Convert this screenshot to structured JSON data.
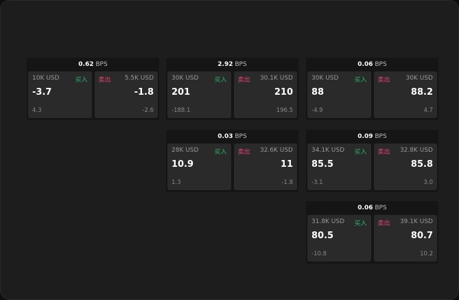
{
  "widgets": [
    {
      "bps": "0.62",
      "unit": "BPS",
      "buy_size": "10K USD",
      "buy_label": "买入",
      "buy_price": "-3.7",
      "buy_change": "4.3",
      "sell_label": "卖出",
      "sell_size": "5.5K USD",
      "sell_price": "-1.8",
      "sell_change": "-2.6"
    },
    {
      "bps": "2.92",
      "unit": "BPS",
      "buy_size": "30K USD",
      "buy_label": "买入",
      "buy_price": "201",
      "buy_change": "-188.1",
      "sell_label": "卖出",
      "sell_size": "30.1K USD",
      "sell_price": "210",
      "sell_change": "196.5"
    },
    {
      "bps": "0.06",
      "unit": "BPS",
      "buy_size": "30K USD",
      "buy_label": "买入",
      "buy_price": "88",
      "buy_change": "-4.9",
      "sell_label": "卖出",
      "sell_size": "30K USD",
      "sell_price": "88.2",
      "sell_change": "4.7"
    },
    {
      "bps": "0.03",
      "unit": "BPS",
      "buy_size": "28K USD",
      "buy_label": "买入",
      "buy_price": "10.9",
      "buy_change": "1.3",
      "sell_label": "卖出",
      "sell_size": "32.6K USD",
      "sell_price": "11",
      "sell_change": "-1.8"
    },
    {
      "bps": "0.09",
      "unit": "BPS",
      "buy_size": "34.1K USD",
      "buy_label": "买入",
      "buy_price": "85.5",
      "buy_change": "-3.1",
      "sell_label": "卖出",
      "sell_size": "32.8K USD",
      "sell_price": "85.8",
      "sell_change": "3.0"
    },
    {
      "bps": "0.06",
      "unit": "BPS",
      "buy_size": "31.8K USD",
      "buy_label": "买入",
      "buy_price": "80.5",
      "buy_change": "-10.8",
      "sell_label": "卖出",
      "sell_size": "39.1K USD",
      "sell_price": "80.7",
      "sell_change": "10.2"
    }
  ],
  "colors": {
    "buy": "#2fb36a",
    "sell": "#e2456e"
  }
}
